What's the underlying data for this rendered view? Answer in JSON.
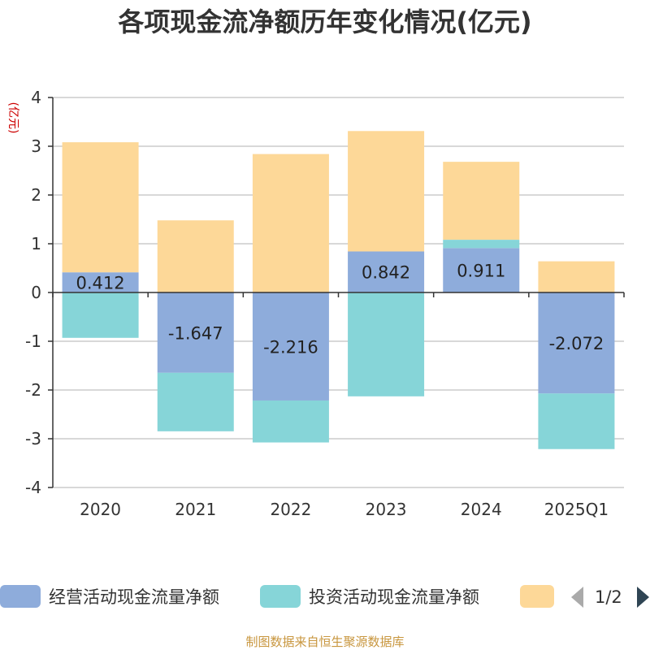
{
  "colors": {
    "operating": "#8eacdb",
    "investing": "#86d5d8",
    "financing": "#fdd898",
    "grid": "#cccccc",
    "axis": "#333333"
  },
  "legend": {
    "items": [
      "经营活动现金流量净额",
      "投资活动现金流量净额",
      ""
    ],
    "pager_text": "1/2"
  },
  "source_text": "制图数据来自恒生聚源数据库",
  "chart_data": {
    "type": "bar",
    "stacked": true,
    "title": "各项现金流净额历年变化情况(亿元)",
    "ylabel": "(亿元)",
    "xlabel": "",
    "ylim": [
      -4,
      4
    ],
    "yticks": [
      4,
      3,
      2,
      1,
      0,
      -1,
      -2,
      -3,
      -4
    ],
    "categories": [
      "2020",
      "2021",
      "2022",
      "2023",
      "2024",
      "2025Q1"
    ],
    "series": [
      {
        "name": "经营活动现金流量净额",
        "color_key": "operating",
        "values": [
          0.412,
          -1.647,
          -2.216,
          0.842,
          0.911,
          -2.072
        ],
        "labels": [
          "0.412",
          "-1.647",
          "-2.216",
          "0.842",
          "0.911",
          "-2.072"
        ]
      },
      {
        "name": "投资活动现金流量净额",
        "color_key": "investing",
        "values": [
          -0.93,
          -1.2,
          -0.86,
          -2.13,
          0.17,
          -1.14
        ]
      },
      {
        "name": "",
        "color_key": "financing",
        "values": [
          2.67,
          1.48,
          2.84,
          2.47,
          1.6,
          0.64
        ]
      }
    ]
  }
}
